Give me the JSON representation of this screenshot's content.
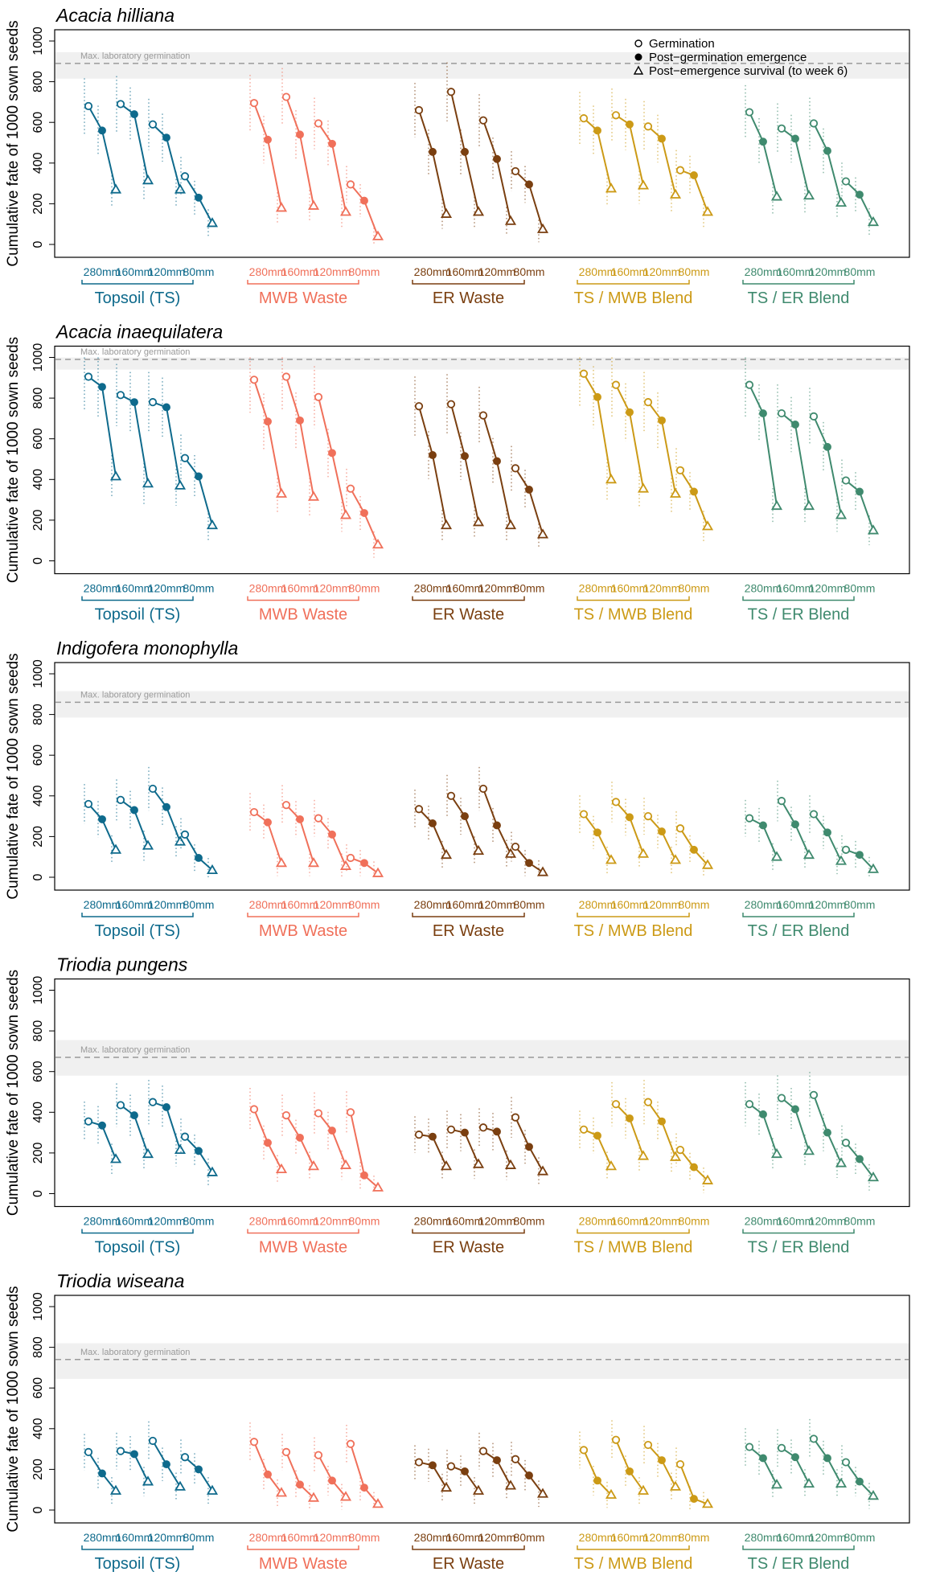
{
  "chart_data": {
    "type": "line",
    "ylabel": "Cumulative fate of 1000 sown seeds",
    "ylim": [
      0,
      1000
    ],
    "yticks": [
      0,
      200,
      400,
      600,
      800,
      1000
    ],
    "max_label": "Max. laboratory germination",
    "stages": [
      "Germination",
      "Post−germination emergence",
      "Post−emergence survival (to week 6)"
    ],
    "depths": [
      "280",
      "160",
      "120",
      "80"
    ],
    "depth_unit": "mm",
    "groups": [
      {
        "name": "Topsoil (TS)",
        "color": "#0e6a8c"
      },
      {
        "name": "MWB Waste",
        "color": "#f0705a"
      },
      {
        "name": "ER Waste",
        "color": "#7a3f10"
      },
      {
        "name": "TS / MWB Blend",
        "color": "#cc9a16"
      },
      {
        "name": "TS / ER Blend",
        "color": "#3f8a6e"
      }
    ],
    "panels": [
      {
        "species": "Acacia hilliana",
        "max_lab": 890,
        "band": [
          815,
          945
        ],
        "data": [
          [
            [
              680,
              560,
              270
            ],
            [
              690,
              640,
              315
            ],
            [
              590,
              525,
              270
            ],
            [
              335,
              230,
              105
            ]
          ],
          [
            [
              695,
              515,
              180
            ],
            [
              725,
              540,
              190
            ],
            [
              595,
              495,
              160
            ],
            [
              295,
              215,
              40
            ]
          ],
          [
            [
              660,
              455,
              150
            ],
            [
              750,
              455,
              160
            ],
            [
              610,
              420,
              115
            ],
            [
              360,
              295,
              75
            ]
          ],
          [
            [
              620,
              560,
              275
            ],
            [
              635,
              590,
              290
            ],
            [
              580,
              520,
              245
            ],
            [
              365,
              340,
              160
            ]
          ],
          [
            [
              650,
              505,
              235
            ],
            [
              570,
              520,
              240
            ],
            [
              595,
              460,
              205
            ],
            [
              310,
              245,
              110
            ]
          ]
        ]
      },
      {
        "species": "Acacia inaequilatera",
        "max_lab": 990,
        "band": [
          940,
          1000
        ],
        "data": [
          [
            [
              905,
              855,
              415
            ],
            [
              815,
              780,
              380
            ],
            [
              780,
              755,
              370
            ],
            [
              505,
              415,
              175
            ]
          ],
          [
            [
              890,
              685,
              330
            ],
            [
              905,
              690,
              315
            ],
            [
              805,
              530,
              225
            ],
            [
              355,
              235,
              80
            ]
          ],
          [
            [
              760,
              520,
              175
            ],
            [
              770,
              515,
              190
            ],
            [
              715,
              490,
              175
            ],
            [
              455,
              350,
              130
            ]
          ],
          [
            [
              920,
              805,
              400
            ],
            [
              865,
              730,
              355
            ],
            [
              780,
              690,
              330
            ],
            [
              445,
              340,
              170
            ]
          ],
          [
            [
              865,
              725,
              270
            ],
            [
              725,
              670,
              270
            ],
            [
              710,
              560,
              225
            ],
            [
              395,
              340,
              150
            ]
          ]
        ]
      },
      {
        "species": "Indigofera monophylla",
        "max_lab": 860,
        "band": [
          785,
          915
        ],
        "data": [
          [
            [
              360,
              285,
              135
            ],
            [
              380,
              330,
              155
            ],
            [
              435,
              345,
              175
            ],
            [
              210,
              95,
              35
            ]
          ],
          [
            [
              320,
              270,
              70
            ],
            [
              355,
              285,
              70
            ],
            [
              290,
              210,
              55
            ],
            [
              95,
              70,
              20
            ]
          ],
          [
            [
              335,
              265,
              110
            ],
            [
              400,
              300,
              130
            ],
            [
              435,
              255,
              115
            ],
            [
              150,
              70,
              25
            ]
          ],
          [
            [
              310,
              220,
              85
            ],
            [
              370,
              295,
              115
            ],
            [
              300,
              225,
              85
            ],
            [
              240,
              135,
              60
            ]
          ],
          [
            [
              290,
              255,
              100
            ],
            [
              375,
              260,
              110
            ],
            [
              310,
              220,
              80
            ],
            [
              135,
              110,
              40
            ]
          ]
        ]
      },
      {
        "species": "Triodia pungens",
        "max_lab": 670,
        "band": [
          580,
          755
        ],
        "data": [
          [
            [
              355,
              335,
              170
            ],
            [
              435,
              385,
              195
            ],
            [
              450,
              425,
              215
            ],
            [
              280,
              210,
              105
            ]
          ],
          [
            [
              415,
              250,
              120
            ],
            [
              385,
              275,
              135
            ],
            [
              395,
              310,
              140
            ],
            [
              400,
              90,
              30
            ]
          ],
          [
            [
              290,
              280,
              135
            ],
            [
              315,
              300,
              145
            ],
            [
              325,
              305,
              140
            ],
            [
              375,
              230,
              110
            ]
          ],
          [
            [
              315,
              285,
              135
            ],
            [
              440,
              370,
              185
            ],
            [
              450,
              355,
              180
            ],
            [
              215,
              130,
              65
            ]
          ],
          [
            [
              440,
              390,
              195
            ],
            [
              470,
              415,
              210
            ],
            [
              485,
              300,
              150
            ],
            [
              250,
              170,
              80
            ]
          ]
        ]
      },
      {
        "species": "Triodia wiseana",
        "max_lab": 740,
        "band": [
          645,
          820
        ],
        "data": [
          [
            [
              285,
              180,
              95
            ],
            [
              290,
              275,
              140
            ],
            [
              340,
              225,
              115
            ],
            [
              260,
              200,
              95
            ]
          ],
          [
            [
              335,
              175,
              85
            ],
            [
              285,
              125,
              60
            ],
            [
              270,
              145,
              65
            ],
            [
              325,
              110,
              30
            ]
          ],
          [
            [
              235,
              220,
              110
            ],
            [
              215,
              190,
              95
            ],
            [
              290,
              245,
              120
            ],
            [
              250,
              170,
              80
            ]
          ],
          [
            [
              295,
              145,
              75
            ],
            [
              345,
              190,
              95
            ],
            [
              320,
              245,
              115
            ],
            [
              225,
              55,
              30
            ]
          ],
          [
            [
              310,
              255,
              125
            ],
            [
              305,
              260,
              130
            ],
            [
              350,
              255,
              130
            ],
            [
              235,
              140,
              70
            ]
          ]
        ]
      }
    ]
  }
}
